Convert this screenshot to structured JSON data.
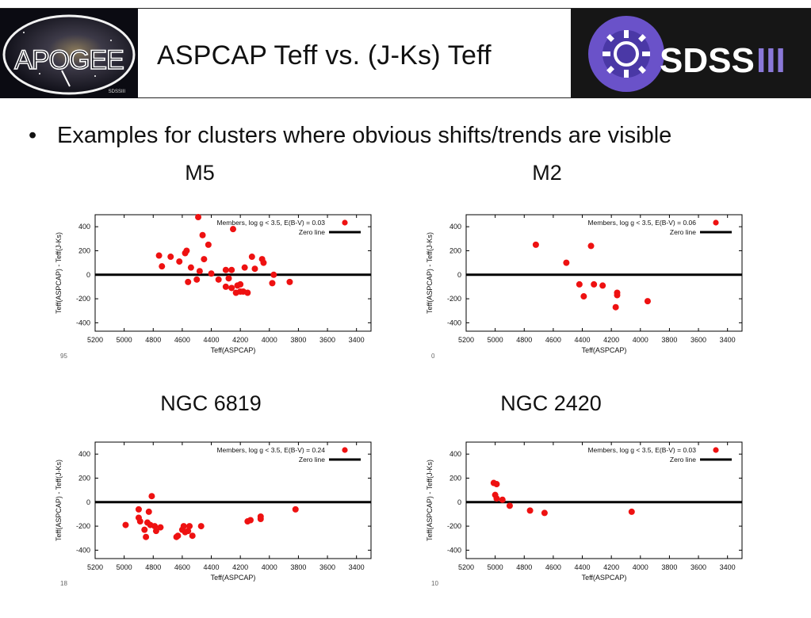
{
  "header": {
    "title": "ASPCAP Teff vs. (J-Ks) Teff",
    "left_logo": {
      "text": "APOGEE",
      "small_text": "SDSSIII"
    },
    "right_logo": {
      "text_bold": "SDSS",
      "text_light": "III"
    }
  },
  "bullet": "Examples for clusters where obvious shifts/trends are visible",
  "colors": {
    "points": "#ee1111",
    "zero_line": "#000000",
    "frame": "#000000"
  },
  "chart_data": [
    {
      "type": "scatter",
      "title": "M5",
      "xlabel": "Teff(ASPCAP)",
      "ylabel": "Teff(ASPCAP) - Teff(J-Ks)",
      "xlim": [
        5200,
        3300
      ],
      "ylim": [
        -470,
        500
      ],
      "xticks": [
        5200,
        5000,
        4800,
        4600,
        4400,
        4200,
        4000,
        3800,
        3600,
        3400
      ],
      "yticks": [
        -400,
        -200,
        0,
        200,
        400
      ],
      "legend": [
        "Members, log g < 3.5, E(B-V) = 0.03",
        "Zero line"
      ],
      "legend_position": "top-right",
      "partial_text": "95",
      "points": [
        [
          4760,
          160
        ],
        [
          4740,
          70
        ],
        [
          4680,
          150
        ],
        [
          4620,
          110
        ],
        [
          4580,
          180
        ],
        [
          4570,
          200
        ],
        [
          4560,
          -60
        ],
        [
          4540,
          60
        ],
        [
          4490,
          480
        ],
        [
          4500,
          -40
        ],
        [
          4480,
          30
        ],
        [
          4460,
          330
        ],
        [
          4450,
          130
        ],
        [
          4420,
          250
        ],
        [
          4400,
          10
        ],
        [
          4350,
          -40
        ],
        [
          4300,
          40
        ],
        [
          4300,
          -100
        ],
        [
          4280,
          -30
        ],
        [
          4260,
          -110
        ],
        [
          4260,
          40
        ],
        [
          4250,
          380
        ],
        [
          4230,
          -150
        ],
        [
          4220,
          -90
        ],
        [
          4200,
          -80
        ],
        [
          4200,
          -140
        ],
        [
          4180,
          -140
        ],
        [
          4170,
          60
        ],
        [
          4150,
          -150
        ],
        [
          4120,
          150
        ],
        [
          4100,
          50
        ],
        [
          4050,
          130
        ],
        [
          4040,
          100
        ],
        [
          3980,
          -70
        ],
        [
          3970,
          0
        ],
        [
          3860,
          -60
        ]
      ]
    },
    {
      "type": "scatter",
      "title": "M2",
      "xlabel": "Teff(ASPCAP)",
      "ylabel": "Teff(ASPCAP) - Teff(J-Ks)",
      "xlim": [
        5200,
        3300
      ],
      "ylim": [
        -470,
        500
      ],
      "xticks": [
        5200,
        5000,
        4800,
        4600,
        4400,
        4200,
        4000,
        3800,
        3600,
        3400
      ],
      "yticks": [
        -400,
        -200,
        0,
        200,
        400
      ],
      "legend": [
        "Members, log g < 3.5, E(B-V) = 0.06",
        "Zero line"
      ],
      "legend_position": "top-right",
      "partial_text": "0",
      "points": [
        [
          4720,
          250
        ],
        [
          4510,
          100
        ],
        [
          4420,
          -80
        ],
        [
          4390,
          -180
        ],
        [
          4340,
          240
        ],
        [
          4320,
          -80
        ],
        [
          4260,
          -90
        ],
        [
          4170,
          -270
        ],
        [
          4160,
          -150
        ],
        [
          4160,
          -170
        ],
        [
          3950,
          -220
        ]
      ]
    },
    {
      "type": "scatter",
      "title": "NGC 6819",
      "xlabel": "Teff(ASPCAP)",
      "ylabel": "Teff(ASPCAP) - Teff(J-Ks)",
      "xlim": [
        5200,
        3300
      ],
      "ylim": [
        -470,
        500
      ],
      "xticks": [
        5200,
        5000,
        4800,
        4600,
        4400,
        4200,
        4000,
        3800,
        3600,
        3400
      ],
      "yticks": [
        -400,
        -200,
        0,
        200,
        400
      ],
      "legend": [
        "Members, log g < 3.5, E(B-V) = 0.24",
        "Zero line"
      ],
      "legend_position": "top-right",
      "partial_text": "18",
      "points": [
        [
          4990,
          -190
        ],
        [
          4900,
          -60
        ],
        [
          4900,
          -130
        ],
        [
          4890,
          -160
        ],
        [
          4860,
          -230
        ],
        [
          4850,
          -290
        ],
        [
          4840,
          -170
        ],
        [
          4830,
          -80
        ],
        [
          4820,
          -190
        ],
        [
          4810,
          50
        ],
        [
          4790,
          -200
        ],
        [
          4780,
          -240
        ],
        [
          4750,
          -210
        ],
        [
          4640,
          -290
        ],
        [
          4630,
          -280
        ],
        [
          4600,
          -230
        ],
        [
          4590,
          -200
        ],
        [
          4580,
          -250
        ],
        [
          4560,
          -240
        ],
        [
          4550,
          -200
        ],
        [
          4530,
          -280
        ],
        [
          4470,
          -200
        ],
        [
          4150,
          -160
        ],
        [
          4130,
          -150
        ],
        [
          4060,
          -140
        ],
        [
          4060,
          -120
        ],
        [
          3820,
          -60
        ]
      ]
    },
    {
      "type": "scatter",
      "title": "NGC 2420",
      "xlabel": "Teff(ASPCAP)",
      "ylabel": "Teff(ASPCAP) - Teff(J-Ks)",
      "xlim": [
        5200,
        3300
      ],
      "ylim": [
        -470,
        500
      ],
      "xticks": [
        5200,
        5000,
        4800,
        4600,
        4400,
        4200,
        4000,
        3800,
        3600,
        3400
      ],
      "yticks": [
        -400,
        -200,
        0,
        200,
        400
      ],
      "legend": [
        "Members, log g < 3.5, E(B-V) = 0.03",
        "Zero line"
      ],
      "legend_position": "top-right",
      "partial_text": "10",
      "points": [
        [
          5010,
          160
        ],
        [
          4990,
          150
        ],
        [
          5000,
          60
        ],
        [
          4990,
          30
        ],
        [
          4950,
          20
        ],
        [
          4900,
          -30
        ],
        [
          4760,
          -70
        ],
        [
          4660,
          -90
        ],
        [
          4060,
          -80
        ]
      ]
    }
  ]
}
